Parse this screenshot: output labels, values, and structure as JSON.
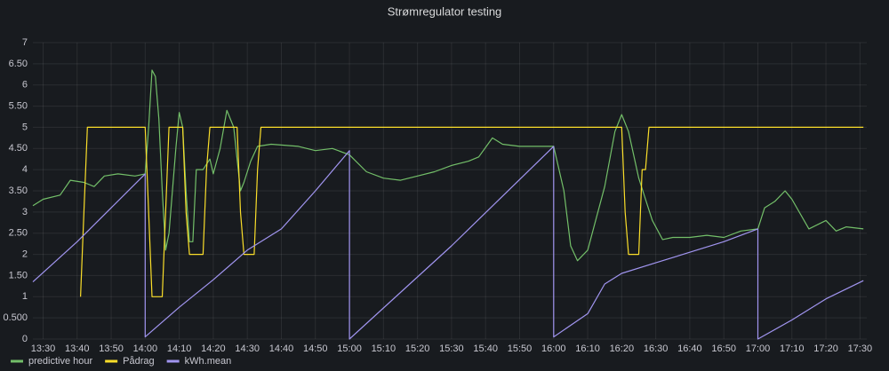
{
  "chart_data": {
    "type": "line",
    "title": "Strømregulator testing",
    "xlim": [
      "13:27",
      "17:32"
    ],
    "ylim": [
      0,
      7
    ],
    "xticks": [
      "13:30",
      "13:40",
      "13:50",
      "14:00",
      "14:10",
      "14:20",
      "14:30",
      "14:40",
      "14:50",
      "15:00",
      "15:10",
      "15:20",
      "15:30",
      "15:40",
      "15:50",
      "16:00",
      "16:10",
      "16:20",
      "16:30",
      "16:40",
      "16:50",
      "17:00",
      "17:10",
      "17:20",
      "17:30"
    ],
    "yticks": [
      0,
      {
        "value": 0.5,
        "label": "0.500"
      },
      1,
      {
        "value": 1.5,
        "label": "1.50"
      },
      2,
      {
        "value": 2.5,
        "label": "2.50"
      },
      3,
      {
        "value": 3.5,
        "label": "3.50"
      },
      4,
      {
        "value": 4.5,
        "label": "4.50"
      },
      5,
      {
        "value": 5.5,
        "label": "5.50"
      },
      6,
      {
        "value": 6.5,
        "label": "6.50"
      },
      7
    ],
    "grid": true,
    "legend": "bottom-left",
    "series": [
      {
        "name": "predictive hour",
        "color": "#73bf69",
        "x": [
          "13:27",
          "13:30",
          "13:35",
          "13:38",
          "13:42",
          "13:45",
          "13:48",
          "13:52",
          "13:57",
          "14:00",
          "14:01",
          "14:02",
          "14:03",
          "14:04",
          "14:05",
          "14:06",
          "14:07",
          "14:09",
          "14:10",
          "14:11",
          "14:12",
          "14:13",
          "14:14",
          "14:15",
          "14:17",
          "14:19",
          "14:20",
          "14:22",
          "14:24",
          "14:26",
          "14:28",
          "14:29",
          "14:31",
          "14:33",
          "14:37",
          "14:45",
          "14:50",
          "14:55",
          "15:00",
          "15:05",
          "15:10",
          "15:15",
          "15:20",
          "15:25",
          "15:30",
          "15:35",
          "15:38",
          "15:42",
          "15:45",
          "15:50",
          "15:55",
          "16:00",
          "16:03",
          "16:05",
          "16:07",
          "16:10",
          "16:15",
          "16:18",
          "16:20",
          "16:22",
          "16:25",
          "16:27",
          "16:29",
          "16:32",
          "16:35",
          "16:40",
          "16:45",
          "16:50",
          "16:55",
          "17:00",
          "17:02",
          "17:05",
          "17:08",
          "17:10",
          "17:15",
          "17:20",
          "17:23",
          "17:26",
          "17:31"
        ],
        "values": [
          3.15,
          3.3,
          3.4,
          3.75,
          3.7,
          3.6,
          3.85,
          3.9,
          3.85,
          3.9,
          5.0,
          6.35,
          6.2,
          5.2,
          3.5,
          2.1,
          2.5,
          4.5,
          5.35,
          5.0,
          3.5,
          2.3,
          2.3,
          4.0,
          4.0,
          4.25,
          3.9,
          4.5,
          5.4,
          5.0,
          3.5,
          3.7,
          4.2,
          4.55,
          4.6,
          4.55,
          4.45,
          4.5,
          4.35,
          3.95,
          3.8,
          3.75,
          3.85,
          3.95,
          4.1,
          4.2,
          4.3,
          4.75,
          4.6,
          4.55,
          4.55,
          4.55,
          3.5,
          2.2,
          1.85,
          2.1,
          3.6,
          4.9,
          5.3,
          4.9,
          3.8,
          3.3,
          2.8,
          2.35,
          2.4,
          2.4,
          2.45,
          2.4,
          2.55,
          2.6,
          3.1,
          3.25,
          3.5,
          3.3,
          2.6,
          2.8,
          2.55,
          2.65,
          2.6
        ]
      },
      {
        "name": "Pådrag",
        "color": "#fade2a",
        "x": [
          "13:41",
          "13:42",
          "13:43",
          "14:00",
          "14:01",
          "14:02",
          "14:05",
          "14:06",
          "14:07",
          "14:11",
          "14:12",
          "14:13",
          "14:17",
          "14:18",
          "14:19",
          "14:27",
          "14:28",
          "14:29",
          "14:32",
          "14:33",
          "14:34",
          "16:20",
          "16:21",
          "16:22",
          "16:25",
          "16:26",
          "16:27",
          "16:28",
          "17:31"
        ],
        "values": [
          1,
          3,
          5,
          5,
          3,
          1,
          1,
          3,
          5,
          5,
          3,
          2,
          2,
          4,
          5,
          5,
          3,
          2,
          2,
          4,
          5,
          5,
          3,
          2,
          2,
          4,
          4,
          5,
          5
        ]
      },
      {
        "name": "kWh.mean",
        "color": "#a195f0",
        "x": [
          "13:27",
          "13:40",
          "13:50",
          "14:00",
          "14:00",
          "14:10",
          "14:20",
          "14:30",
          "14:40",
          "14:50",
          "15:00",
          "15:00",
          "15:30",
          "16:00",
          "16:00",
          "16:10",
          "16:15",
          "16:20",
          "16:30",
          "16:40",
          "16:50",
          "17:00",
          "17:00",
          "17:10",
          "17:20",
          "17:31"
        ],
        "values": [
          1.35,
          2.3,
          3.1,
          3.9,
          0.05,
          0.75,
          1.4,
          2.1,
          2.6,
          3.5,
          4.45,
          0.0,
          2.2,
          4.55,
          0.05,
          0.6,
          1.3,
          1.55,
          1.8,
          2.05,
          2.3,
          2.6,
          0.0,
          0.45,
          0.95,
          1.38
        ]
      }
    ]
  }
}
